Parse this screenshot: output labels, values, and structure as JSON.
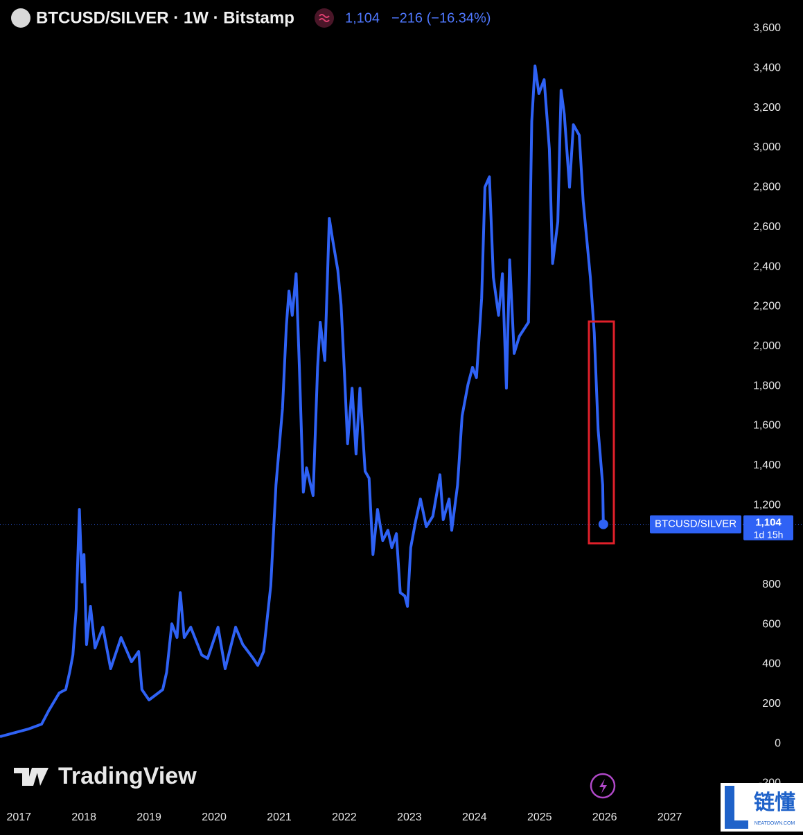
{
  "chart_data": {
    "type": "line",
    "title": "BTCUSD/SILVER · 1W · Bitstamp",
    "last_price_label": "1,104",
    "change_label": "−216 (−16.34%)",
    "countdown_label": "1d 15h",
    "brand": "TradingView",
    "watermark": {
      "name": "链懂",
      "site": "NEATDOWN.COM"
    },
    "xlim": [
      2016.71,
      2028.1
    ],
    "xticks": [
      2017,
      2018,
      2019,
      2020,
      2021,
      2022,
      2023,
      2024,
      2025,
      2026,
      2027
    ],
    "ylim": [
      -303,
      3743
    ],
    "yticks": [
      -200,
      0,
      200,
      400,
      600,
      800,
      {
        "value": 1200,
        "label": "1,200"
      },
      {
        "value": 1400,
        "label": "1,400"
      },
      {
        "value": 1600,
        "label": "1,600"
      },
      {
        "value": 1800,
        "label": "1,800"
      },
      {
        "value": 2000,
        "label": "2,000"
      },
      {
        "value": 2200,
        "label": "2,200"
      },
      {
        "value": 2400,
        "label": "2,400"
      },
      {
        "value": 2600,
        "label": "2,600"
      },
      {
        "value": 2800,
        "label": "2,800"
      },
      {
        "value": 3000,
        "label": "3,000"
      },
      {
        "value": 3200,
        "label": "3,200"
      },
      {
        "value": 3400,
        "label": "3,400"
      },
      {
        "value": 3600,
        "label": "3,600"
      }
    ],
    "grid": false,
    "series": [
      {
        "name": "BTCUSD/SILVER",
        "color": "#2f62f5",
        "x": [
          2016.71,
          2017.14,
          2017.35,
          2017.46,
          2017.62,
          2017.72,
          2017.78,
          2017.83,
          2017.88,
          2017.93,
          2017.97,
          2018.0,
          2018.04,
          2018.1,
          2018.17,
          2018.29,
          2018.41,
          2018.57,
          2018.73,
          2018.84,
          2018.89,
          2019.0,
          2019.21,
          2019.27,
          2019.35,
          2019.43,
          2019.48,
          2019.54,
          2019.64,
          2019.81,
          2019.9,
          2020.06,
          2020.17,
          2020.33,
          2020.44,
          2020.6,
          2020.67,
          2020.76,
          2020.87,
          2020.95,
          2021.0,
          2021.05,
          2021.11,
          2021.15,
          2021.2,
          2021.26,
          2021.31,
          2021.37,
          2021.42,
          2021.52,
          2021.59,
          2021.63,
          2021.7,
          2021.77,
          2021.82,
          2021.9,
          2021.95,
          2022.0,
          2022.05,
          2022.12,
          2022.18,
          2022.24,
          2022.32,
          2022.38,
          2022.44,
          2022.51,
          2022.59,
          2022.67,
          2022.73,
          2022.8,
          2022.86,
          2022.93,
          2022.97,
          2023.02,
          2023.1,
          2023.17,
          2023.26,
          2023.36,
          2023.47,
          2023.52,
          2023.61,
          2023.65,
          2023.74,
          2023.81,
          2023.9,
          2023.97,
          2024.03,
          2024.11,
          2024.16,
          2024.23,
          2024.29,
          2024.37,
          2024.43,
          2024.49,
          2024.54,
          2024.61,
          2024.69,
          2024.83,
          2024.88,
          2024.93,
          2024.99,
          2025.07,
          2025.15,
          2025.2,
          2025.28,
          2025.33,
          2025.38,
          2025.46,
          2025.52,
          2025.61,
          2025.67,
          2025.74,
          2025.78,
          2025.84,
          2025.9,
          2025.97,
          2025.98
        ],
        "values": [
          35,
          73,
          98,
          167,
          255,
          272,
          359,
          446,
          673,
          1179,
          813,
          952,
          499,
          691,
          481,
          586,
          377,
          534,
          412,
          464,
          272,
          220,
          272,
          359,
          603,
          534,
          760,
          534,
          586,
          446,
          429,
          586,
          377,
          586,
          499,
          429,
          394,
          464,
          795,
          1301,
          1493,
          1685,
          2103,
          2278,
          2156,
          2365,
          1894,
          1266,
          1388,
          1249,
          1894,
          2121,
          1929,
          2644,
          2539,
          2382,
          2208,
          1877,
          1510,
          1789,
          1458,
          1789,
          1371,
          1336,
          952,
          1179,
          1022,
          1074,
          987,
          1057,
          760,
          743,
          691,
          987,
          1127,
          1231,
          1092,
          1144,
          1353,
          1127,
          1231,
          1074,
          1301,
          1650,
          1807,
          1894,
          1842,
          2243,
          2801,
          2853,
          2347,
          2156,
          2365,
          1789,
          2435,
          1964,
          2051,
          2121,
          3132,
          3411,
          3272,
          3342,
          2993,
          2417,
          2626,
          3289,
          3167,
          2801,
          3115,
          3062,
          2731,
          2487,
          2347,
          2068,
          1580,
          1301,
          1104
        ]
      }
    ]
  }
}
